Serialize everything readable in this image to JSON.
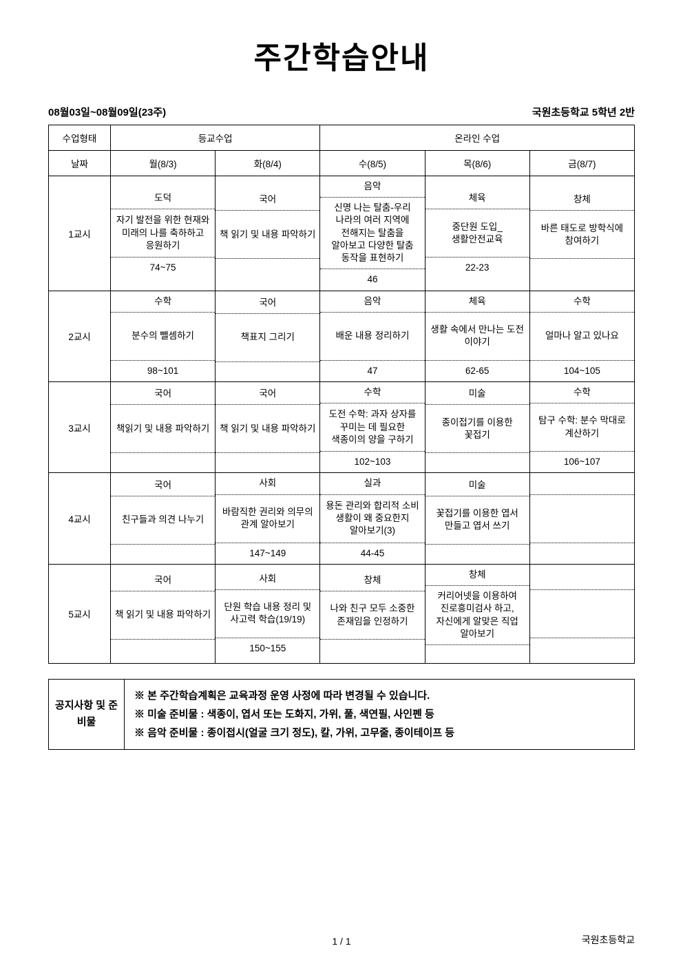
{
  "title": "주간학습안내",
  "date_range": "08월03일~08월09일(23주)",
  "class_info": "국원초등학교 5학년 2반",
  "headers": {
    "type_label": "수업형태",
    "in_person": "등교수업",
    "online": "온라인 수업",
    "date_label": "날짜",
    "days": [
      "월(8/3)",
      "화(8/4)",
      "수(8/5)",
      "목(8/6)",
      "금(8/7)"
    ]
  },
  "periods": [
    {
      "label": "1교시",
      "cells": [
        {
          "subject": "도덕",
          "desc": "자기 발전을 위한 현재와 미래의 나를 축하하고 응원하기",
          "pages": "74~75"
        },
        {
          "subject": "국어",
          "desc": "책 읽기 및 내용 파악하기",
          "pages": ""
        },
        {
          "subject": "음악",
          "desc": "신명 나는 탈춤-우리 나라의 여러 지역에 전해지는 탈춤을 알아보고 다양한 탈춤 동작을 표현하기",
          "pages": "46"
        },
        {
          "subject": "체육",
          "desc": "중단원 도입_생활안전교육",
          "pages": "22-23"
        },
        {
          "subject": "창체",
          "desc": "바른 태도로 방학식에 참여하기",
          "pages": ""
        }
      ]
    },
    {
      "label": "2교시",
      "cells": [
        {
          "subject": "수학",
          "desc": "분수의 뺄셈하기",
          "pages": "98~101"
        },
        {
          "subject": "국어",
          "desc": "책표지 그리기",
          "pages": ""
        },
        {
          "subject": "음악",
          "desc": "배운 내용 정리하기",
          "pages": "47"
        },
        {
          "subject": "체육",
          "desc": "생활 속에서 만나는 도전 이야기",
          "pages": "62-65"
        },
        {
          "subject": "수학",
          "desc": "얼마나 알고 있나요",
          "pages": "104~105"
        }
      ]
    },
    {
      "label": "3교시",
      "cells": [
        {
          "subject": "국어",
          "desc": "책읽기 및 내용 파악하기",
          "pages": ""
        },
        {
          "subject": "국어",
          "desc": "책 읽기 및 내용 파악하기",
          "pages": ""
        },
        {
          "subject": "수학",
          "desc": "도전 수학: 과자 상자를 꾸미는 데 필요한 색종이의 양을 구하기",
          "pages": "102~103"
        },
        {
          "subject": "미술",
          "desc": "종이접기를 이용한 꽃접기",
          "pages": ""
        },
        {
          "subject": "수학",
          "desc": "탐구 수학: 분수 막대로 계산하기",
          "pages": "106~107"
        }
      ]
    },
    {
      "label": "4교시",
      "cells": [
        {
          "subject": "국어",
          "desc": "친구들과 의견 나누기",
          "pages": ""
        },
        {
          "subject": "사회",
          "desc": "바람직한 권리와 의무의 관계 알아보기",
          "pages": "147~149"
        },
        {
          "subject": "실과",
          "desc": "용돈 관리와 합리적 소비 생활이 왜 중요한지 알아보기(3)",
          "pages": "44-45"
        },
        {
          "subject": "미술",
          "desc": "꽃접기를 이용한 엽서 만들고 엽서 쓰기",
          "pages": ""
        },
        {
          "subject": "",
          "desc": "",
          "pages": ""
        }
      ]
    },
    {
      "label": "5교시",
      "cells": [
        {
          "subject": "국어",
          "desc": "책 읽기 및 내용 파악하기",
          "pages": ""
        },
        {
          "subject": "사회",
          "desc": "단원 학습 내용 정리 및 사고력 학습(19/19)",
          "pages": "150~155"
        },
        {
          "subject": "창체",
          "desc": "나와 친구 모두 소중한 존재임을 인정하기",
          "pages": ""
        },
        {
          "subject": "창체",
          "desc": "커리어넷을 이용하여 진로흥미검사 하고, 자신에게 알맞은 직업 알아보기",
          "pages": ""
        },
        {
          "subject": "",
          "desc": "",
          "pages": ""
        }
      ]
    }
  ],
  "notice": {
    "label": "공지사항\n및 준비물",
    "lines": [
      "※  본 주간학습계획은 교육과정 운영 사정에 따라 변경될 수 있습니다.",
      "※ 미술 준비물 : 색종이, 엽서 또는 도화지, 가위, 풀, 색연필, 사인펜 등",
      "※ 음악 준비물 : 종이접시(얼굴 크기 정도), 칼, 가위, 고무줄, 종이테이프 등"
    ]
  },
  "footer": {
    "page": "1  /  1",
    "school": "국원초등학교"
  }
}
